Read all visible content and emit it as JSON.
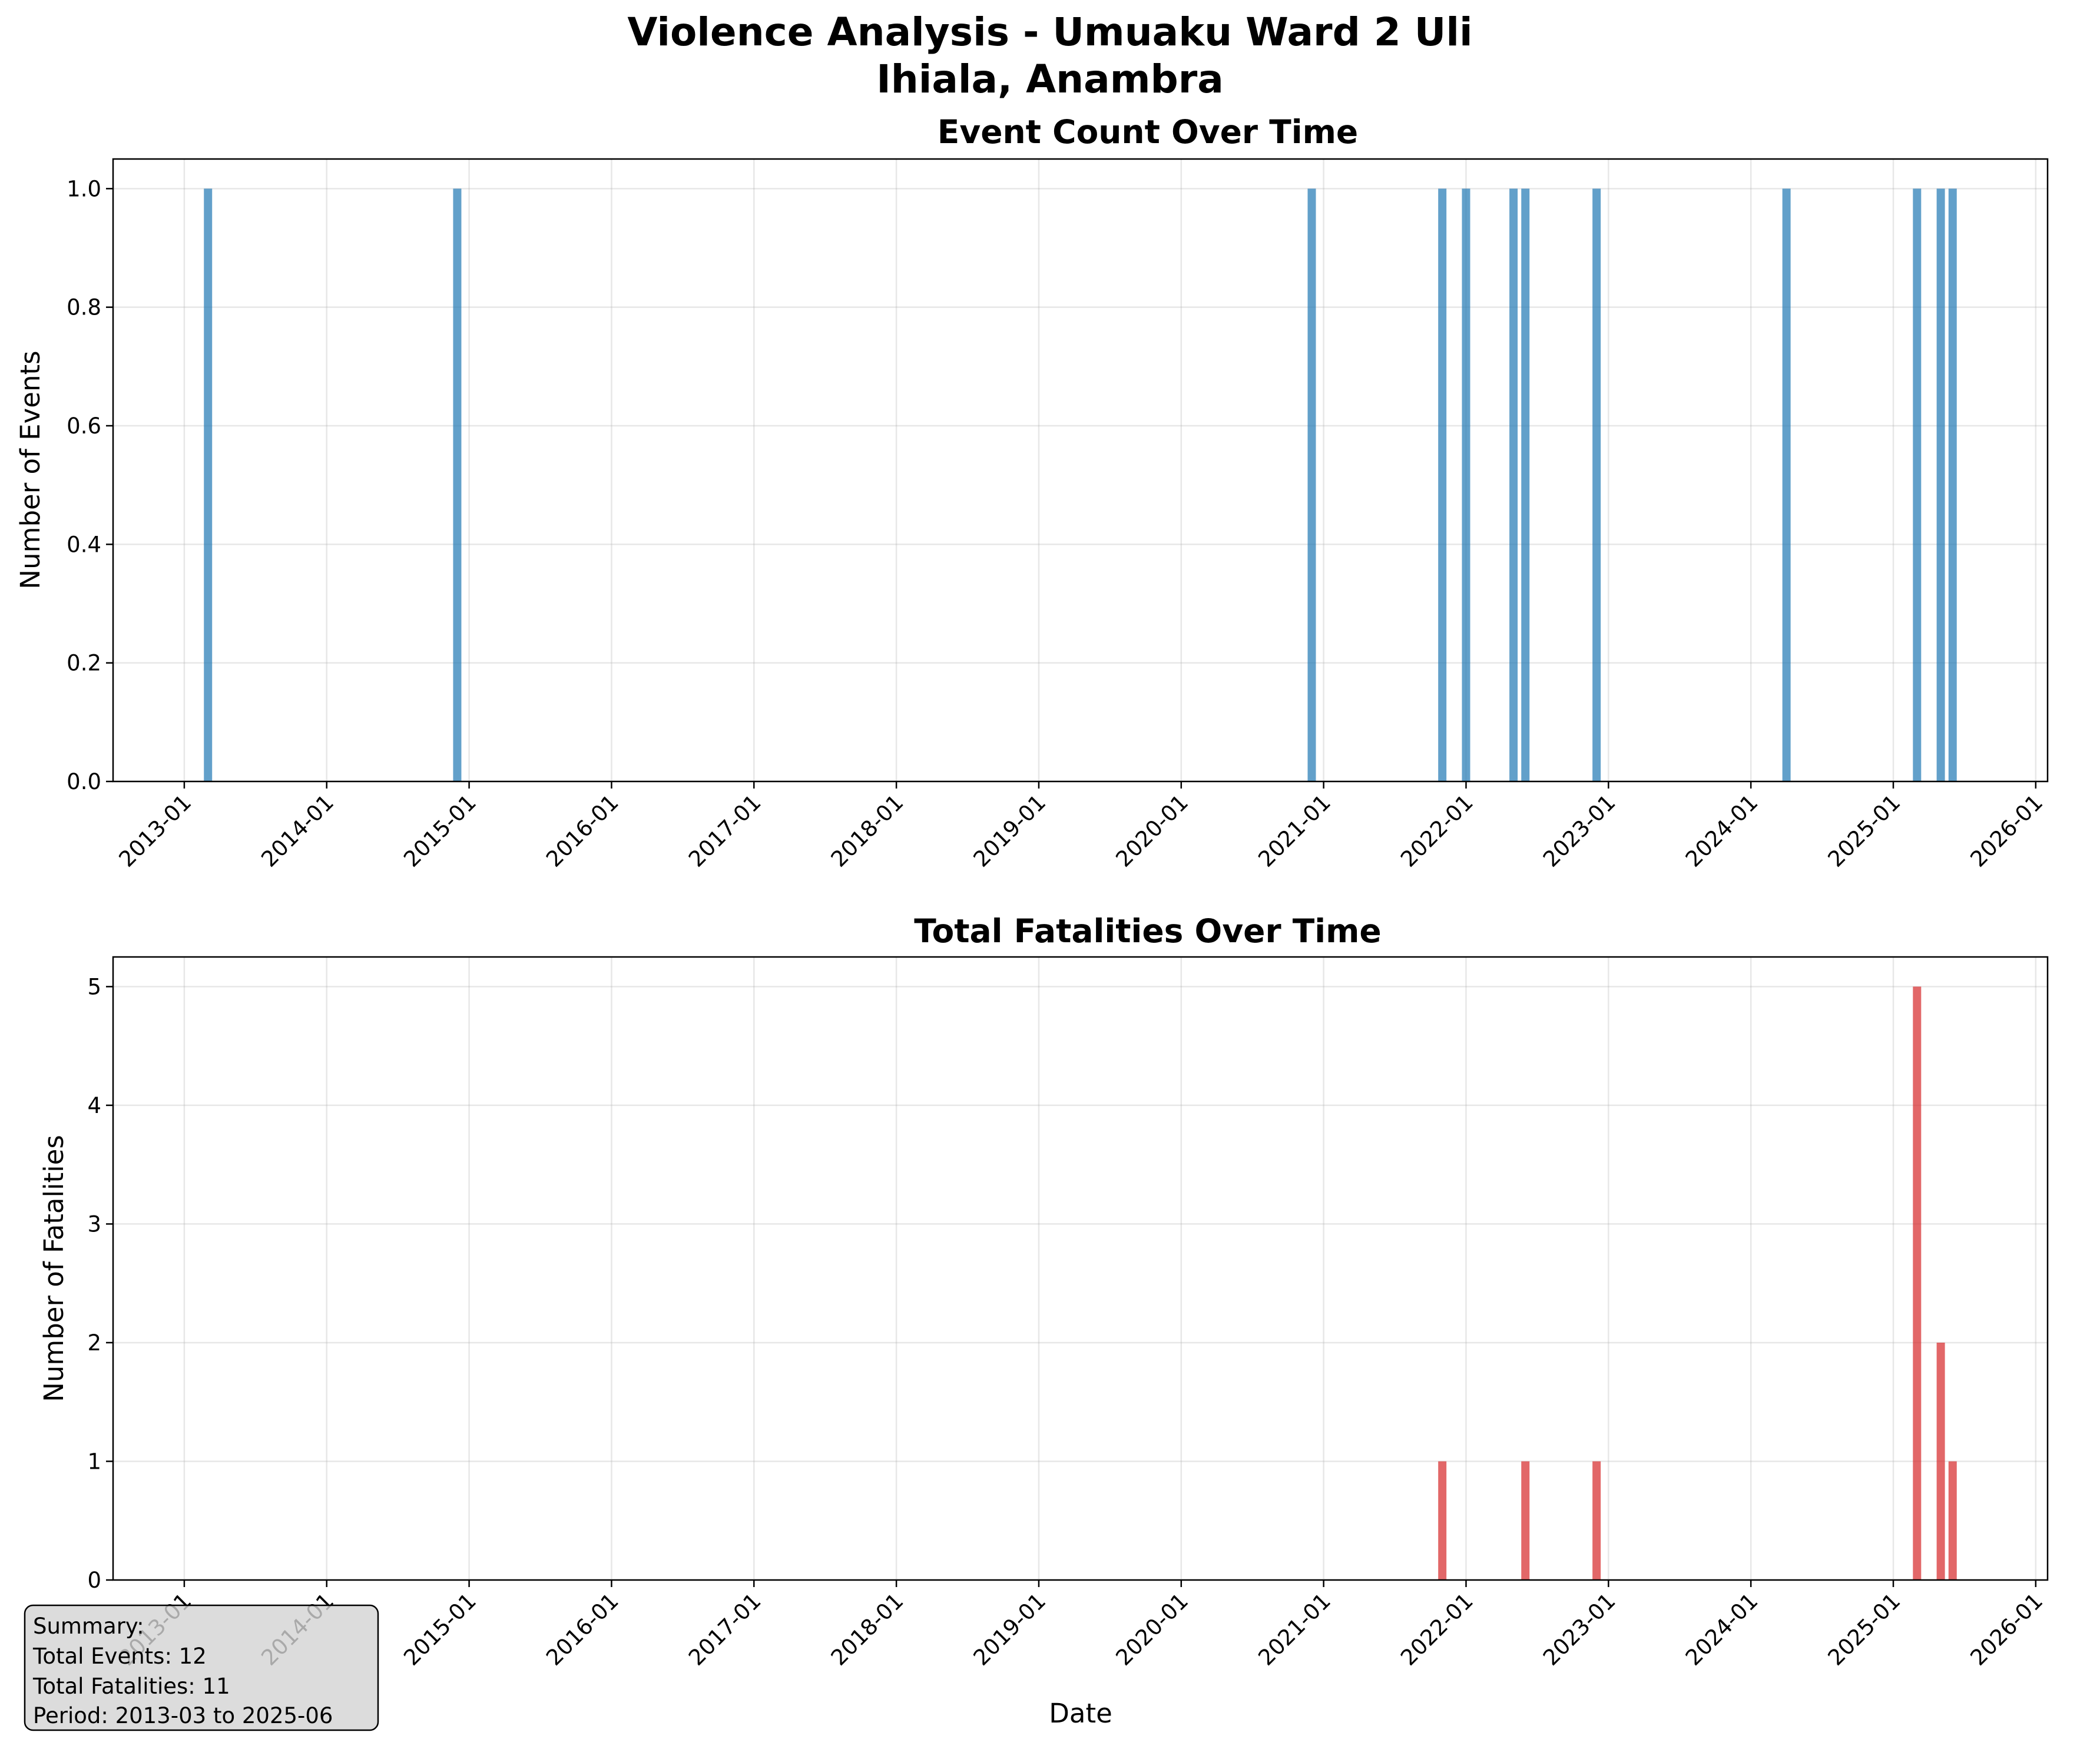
{
  "title_line1": "Violence Analysis - Umuaku Ward 2 Uli",
  "title_line2": "Ihiala, Anambra",
  "summary": {
    "heading": "Summary:",
    "events": "Total Events: 12",
    "fatalities": "Total Fatalities: 11",
    "period": "Period: 2013-03 to 2025-06"
  },
  "colors": {
    "events": "#1f77b4",
    "fatalities": "#d62728",
    "summary_box": "#d3d3d3"
  },
  "chart_data": [
    {
      "type": "bar",
      "title": "Event Count Over Time",
      "xlabel": "",
      "ylabel": "Number of Events",
      "x_ticks": [
        "2013-01",
        "2014-01",
        "2015-01",
        "2016-01",
        "2017-01",
        "2018-01",
        "2019-01",
        "2020-01",
        "2021-01",
        "2022-01",
        "2023-01",
        "2024-01",
        "2025-01",
        "2026-01"
      ],
      "y_ticks": [
        "0.0",
        "0.2",
        "0.4",
        "0.6",
        "0.8",
        "1.0"
      ],
      "ylim": [
        0,
        1.05
      ],
      "xlim": [
        "2012-07",
        "2026-02"
      ],
      "grid": true,
      "color": "#1f77b4",
      "x": [
        "2013-03",
        "2014-12",
        "2020-12",
        "2021-11",
        "2022-01",
        "2022-05",
        "2022-06",
        "2022-12",
        "2024-04",
        "2025-03",
        "2025-05",
        "2025-06"
      ],
      "values": [
        1,
        1,
        1,
        1,
        1,
        1,
        1,
        1,
        1,
        1,
        1,
        1
      ]
    },
    {
      "type": "bar",
      "title": "Total Fatalities Over Time",
      "xlabel": "Date",
      "ylabel": "Number of Fatalities",
      "x_ticks": [
        "2013-01",
        "2014-01",
        "2015-01",
        "2016-01",
        "2017-01",
        "2018-01",
        "2019-01",
        "2020-01",
        "2021-01",
        "2022-01",
        "2023-01",
        "2024-01",
        "2025-01",
        "2026-01"
      ],
      "y_ticks": [
        "0",
        "1",
        "2",
        "3",
        "4",
        "5"
      ],
      "ylim": [
        0,
        5.25
      ],
      "xlim": [
        "2012-07",
        "2026-02"
      ],
      "grid": true,
      "color": "#d62728",
      "x": [
        "2021-11",
        "2022-06",
        "2022-12",
        "2025-03",
        "2025-05",
        "2025-06"
      ],
      "values": [
        1,
        1,
        1,
        5,
        2,
        1
      ]
    }
  ]
}
